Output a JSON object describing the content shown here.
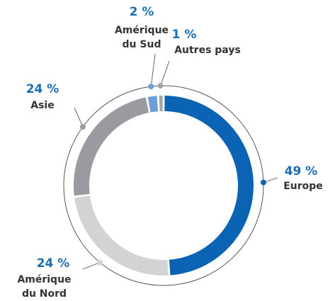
{
  "chart_data": {
    "type": "donut",
    "categories": [
      "Europe",
      "Amérique du Nord",
      "Asie",
      "Amérique du Sud",
      "Autres pays"
    ],
    "values": [
      49,
      24,
      24,
      2,
      1
    ],
    "value_labels": [
      "49 %",
      "24 %",
      "24 %",
      "2 %",
      "1 %"
    ],
    "colors": [
      "#0a63b3",
      "#d2d3d5",
      "#9a9ba0",
      "#6c9fd6",
      "#a3a4a8"
    ]
  }
}
